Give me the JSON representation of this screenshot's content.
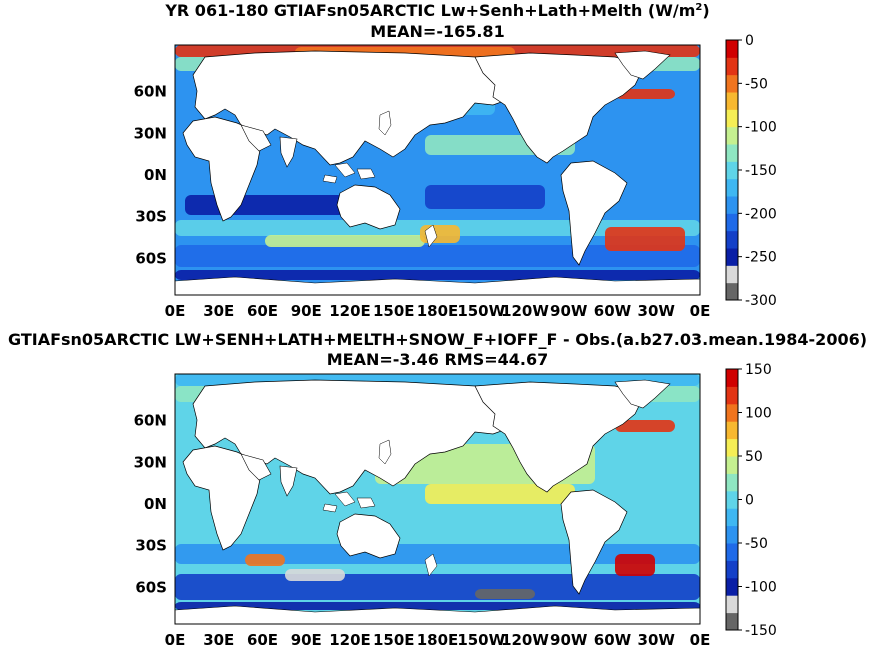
{
  "panels": [
    {
      "title_line1": "YR 061-180 GTIAFsn05ARCTIC Lw+Senh+Lath+Melth (W/m",
      "title_sup": "2",
      "title_close": ")",
      "title_line2": "MEAN=-165.81",
      "colorbar": {
        "ticks": [
          "0",
          "-50",
          "-100",
          "-150",
          "-200",
          "-250",
          "-300"
        ],
        "range": [
          -300,
          0
        ],
        "colors": [
          "#666666",
          "#d9d9d9",
          "#0a1fa6",
          "#1440c8",
          "#1f6ae8",
          "#2d93f0",
          "#3fb7f2",
          "#5fd4e8",
          "#8fe6c2",
          "#c5f090",
          "#f5ee55",
          "#f7b830",
          "#f0741e",
          "#e23414",
          "#d00000"
        ]
      },
      "x_ticks": [
        "0E",
        "30E",
        "60E",
        "90E",
        "120E",
        "150E",
        "180E",
        "150W",
        "120W",
        "90W",
        "60W",
        "30W",
        "0E"
      ],
      "y_ticks": [
        "60N",
        "30N",
        "0N",
        "30S",
        "60S"
      ]
    },
    {
      "title_line1": "GTIAFsn05ARCTIC LW+SENH+LATH+MELTH+SNOW_F+IOFF_F - Obs.(a.b27.03.mean.1984-2006)",
      "title_line2": "MEAN=-3.46 RMS=44.67",
      "colorbar": {
        "ticks": [
          "150",
          "100",
          "50",
          "0",
          "-50",
          "-100",
          "-150"
        ],
        "range": [
          -150,
          150
        ],
        "colors": [
          "#666666",
          "#d9d9d9",
          "#0a1fa6",
          "#1440c8",
          "#1f6ae8",
          "#2d93f0",
          "#3fb7f2",
          "#5fd4e8",
          "#8fe6c2",
          "#c5f090",
          "#f5ee55",
          "#f7b830",
          "#f0741e",
          "#e23414",
          "#d00000"
        ]
      },
      "x_ticks": [
        "0E",
        "30E",
        "60E",
        "90E",
        "120E",
        "150E",
        "180E",
        "150W",
        "120W",
        "90W",
        "60W",
        "30W",
        "0E"
      ],
      "y_ticks": [
        "60N",
        "30N",
        "0N",
        "30S",
        "60S"
      ]
    }
  ]
}
